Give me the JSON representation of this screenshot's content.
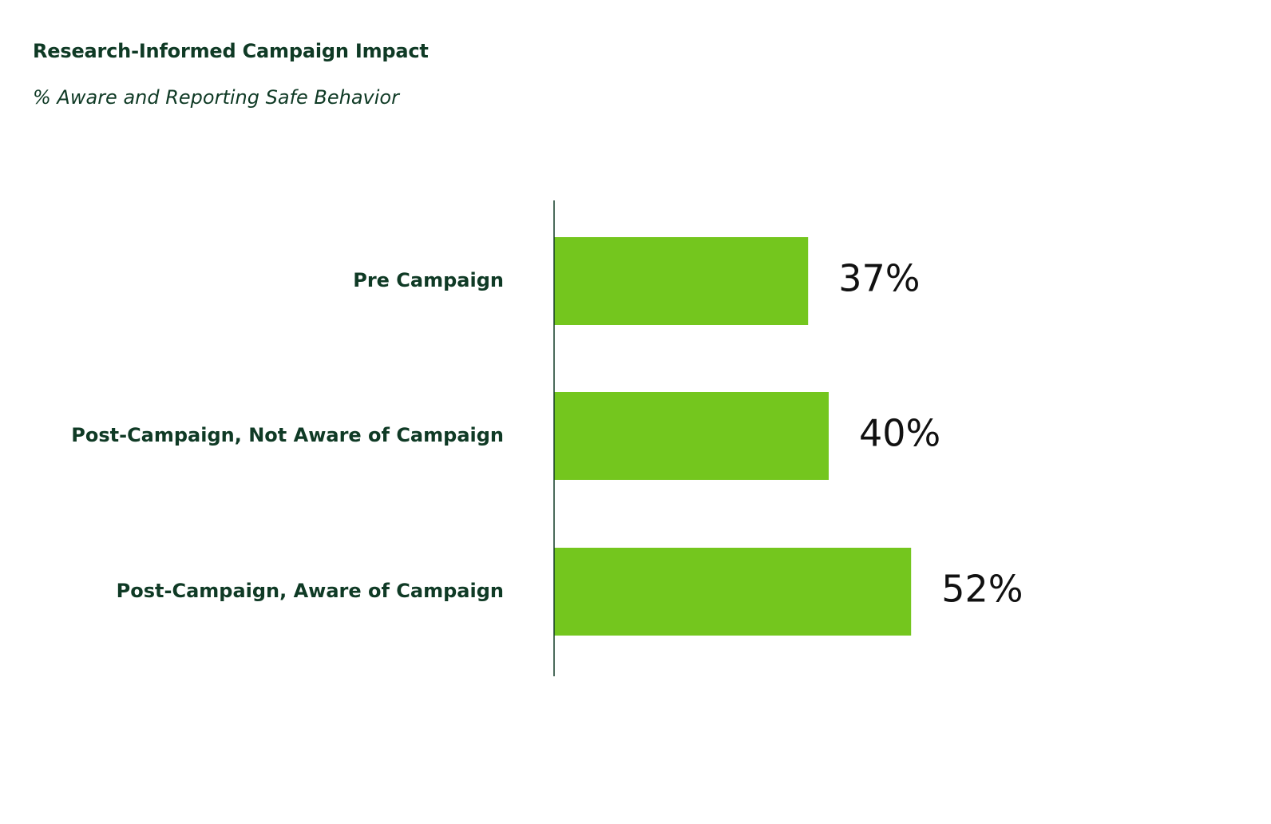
{
  "chart_data": {
    "type": "bar",
    "orientation": "horizontal",
    "title": "Research-Informed Campaign Impact",
    "subtitle": "% Aware and Reporting Safe Behavior",
    "categories": [
      "Pre Campaign",
      "Post-Campaign, Not Aware of Campaign",
      "Post-Campaign, Aware of Campaign"
    ],
    "values": [
      37,
      40,
      52
    ],
    "value_labels": [
      "37%",
      "40%",
      "52%"
    ],
    "xlim": [
      0,
      100
    ],
    "grid": false,
    "legend": "none",
    "colors": {
      "bar": "#74c61e",
      "axis": "#0f3a25",
      "text": "#0f3a25"
    }
  }
}
